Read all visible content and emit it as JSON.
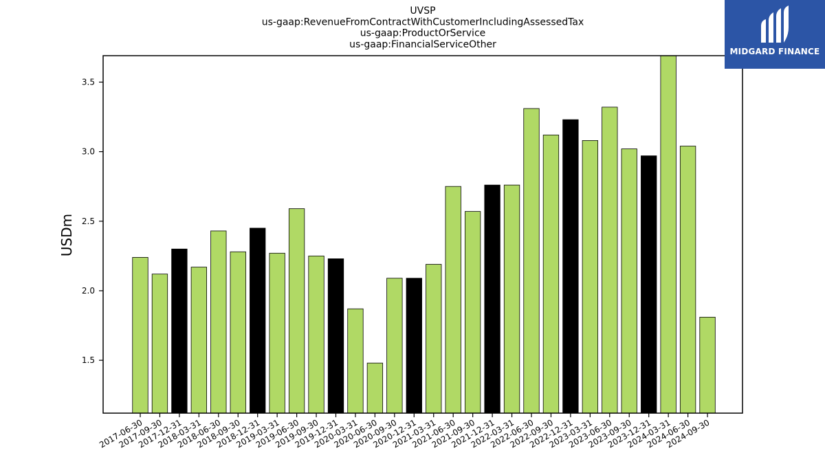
{
  "chart_data": {
    "type": "bar",
    "title_lines": [
      "UVSP",
      "us-gaap:RevenueFromContractWithCustomerIncludingAssessedTax",
      "us-gaap:ProductOrService",
      "us-gaap:FinancialServiceOther"
    ],
    "ylabel": "USDm",
    "xlabel": "",
    "ylim": [
      1.12,
      3.69
    ],
    "yticks": [
      1.5,
      2.0,
      2.5,
      3.0,
      3.5
    ],
    "categories": [
      "2017-06-30",
      "2017-09-30",
      "2017-12-31",
      "2018-03-31",
      "2018-06-30",
      "2018-09-30",
      "2018-12-31",
      "2019-03-31",
      "2019-06-30",
      "2019-09-30",
      "2019-12-31",
      "2020-03-31",
      "2020-06-30",
      "2020-09-30",
      "2020-12-31",
      "2021-03-31",
      "2021-06-30",
      "2021-09-30",
      "2021-12-31",
      "2022-03-31",
      "2022-06-30",
      "2022-09-30",
      "2022-12-31",
      "2023-03-31",
      "2023-06-30",
      "2023-09-30",
      "2023-12-31",
      "2024-03-31",
      "2024-06-30",
      "2024-09-30"
    ],
    "values": [
      2.24,
      2.12,
      2.3,
      2.17,
      2.43,
      2.28,
      2.45,
      2.27,
      2.59,
      2.25,
      2.23,
      1.87,
      1.48,
      2.09,
      2.09,
      2.19,
      2.75,
      2.57,
      2.76,
      2.76,
      3.31,
      3.12,
      3.23,
      3.08,
      3.32,
      3.02,
      2.97,
      3.69,
      3.04,
      1.81
    ],
    "bar_colors": [
      "#b0d965",
      "#b0d965",
      "#000000",
      "#b0d965",
      "#b0d965",
      "#b0d965",
      "#000000",
      "#b0d965",
      "#b0d965",
      "#b0d965",
      "#000000",
      "#b0d965",
      "#b0d965",
      "#b0d965",
      "#000000",
      "#b0d965",
      "#b0d965",
      "#b0d965",
      "#000000",
      "#b0d965",
      "#b0d965",
      "#b0d965",
      "#000000",
      "#b0d965",
      "#b0d965",
      "#b0d965",
      "#000000",
      "#b0d965",
      "#b0d965",
      "#b0d965"
    ],
    "grid": false,
    "legend": "none"
  },
  "logo": {
    "text": "MIDGARD FINANCE",
    "background": "#2c55a6"
  }
}
